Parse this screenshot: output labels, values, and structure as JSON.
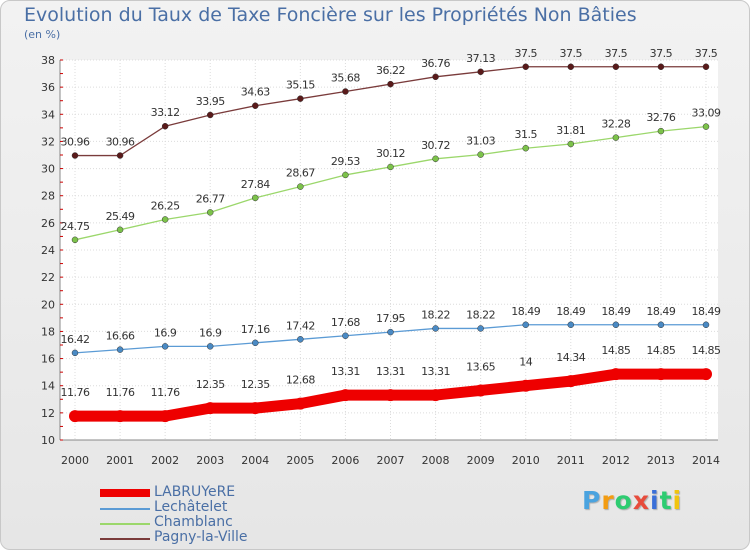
{
  "title": "Evolution du Taux de Taxe Foncière sur les Propriétés Non Bâties",
  "unit_label": "(en %)",
  "logo": {
    "letters": [
      "P",
      "r",
      "o",
      "x",
      "i",
      "t",
      "i"
    ],
    "colors": [
      "#4aa3df",
      "#f39c12",
      "#2ecc71",
      "#e74c3c",
      "#3a6fd8",
      "#2ecc71",
      "#f1c40f"
    ]
  },
  "chart_data": {
    "type": "line",
    "title": "Evolution du Taux de Taxe Foncière sur les Propriétés Non Bâties",
    "xlabel": "",
    "ylabel": "(en %)",
    "ylim": [
      10,
      38
    ],
    "yticks": [
      10,
      12,
      14,
      16,
      18,
      20,
      22,
      24,
      26,
      28,
      30,
      32,
      34,
      36,
      38
    ],
    "grid": true,
    "legend_position": "bottom-left",
    "categories": [
      "2000",
      "2001",
      "2002",
      "2003",
      "2004",
      "2005",
      "2006",
      "2007",
      "2008",
      "2009",
      "2010",
      "2011",
      "2012",
      "2013",
      "2014"
    ],
    "series": [
      {
        "name": "Pagny-la-Ville",
        "color": "#7a3b3b",
        "marker": "#5a1a1a",
        "thick": false,
        "values": [
          30.96,
          30.96,
          33.12,
          33.95,
          34.63,
          35.15,
          35.68,
          36.22,
          36.76,
          37.13,
          37.5,
          37.5,
          37.5,
          37.5,
          37.5
        ]
      },
      {
        "name": "Chamblanc",
        "color": "#9bd76b",
        "marker": "#7cc24a",
        "thick": false,
        "values": [
          24.75,
          25.49,
          26.25,
          26.77,
          27.84,
          28.67,
          29.53,
          30.12,
          30.72,
          31.03,
          31.5,
          31.81,
          32.28,
          32.76,
          33.09
        ]
      },
      {
        "name": "Lechâtelet",
        "color": "#5b9bd5",
        "marker": "#4a8ac4",
        "thick": false,
        "values": [
          16.42,
          16.66,
          16.9,
          16.9,
          17.16,
          17.42,
          17.68,
          17.95,
          18.22,
          18.22,
          18.49,
          18.49,
          18.49,
          18.49,
          18.49
        ]
      },
      {
        "name": "LABRUYeRE",
        "color": "#ee0000",
        "marker": "#ee0000",
        "thick": true,
        "values": [
          11.76,
          11.76,
          11.76,
          12.35,
          12.35,
          12.68,
          13.31,
          13.31,
          13.31,
          13.65,
          14,
          14.34,
          14.85,
          14.85,
          14.85
        ]
      }
    ],
    "legend_order": [
      "LABRUYeRE",
      "Lechâtelet",
      "Chamblanc",
      "Pagny-la-Ville"
    ]
  }
}
